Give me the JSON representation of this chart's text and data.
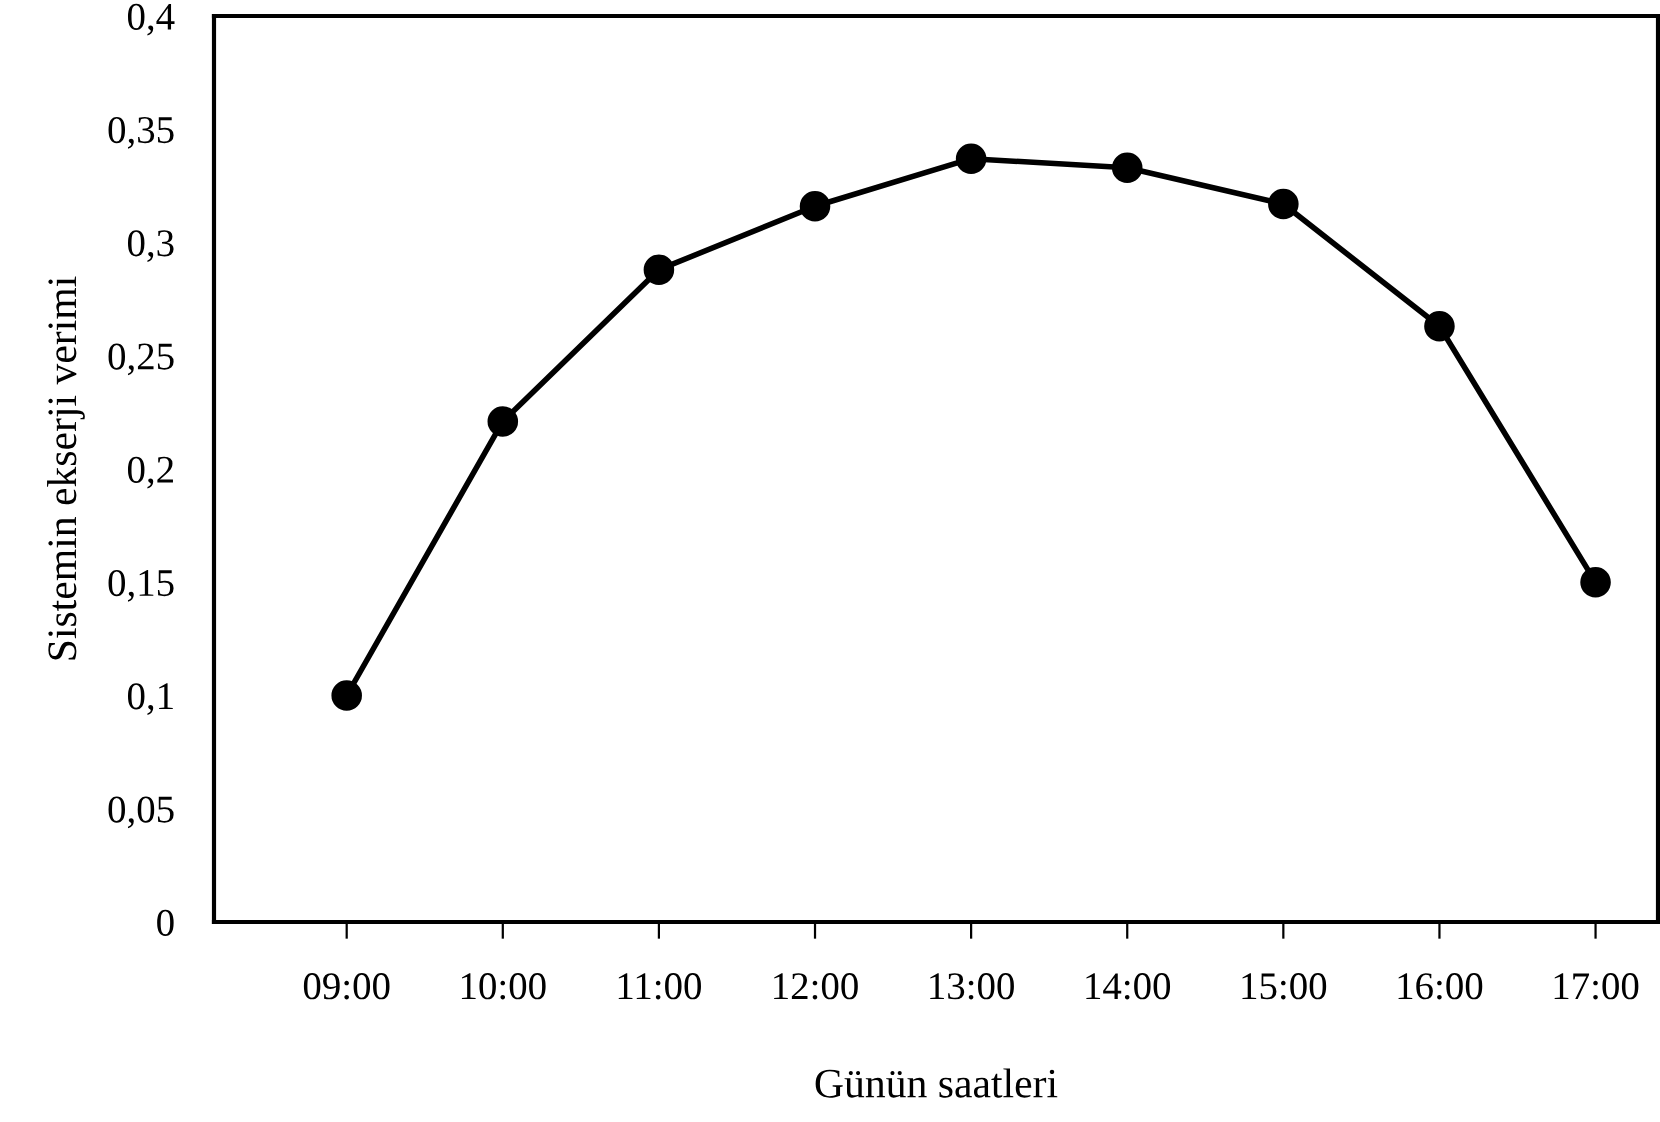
{
  "chart_data": {
    "type": "line",
    "xlabel": "Günün saatleri",
    "ylabel": "Sistemin ekserji verimi",
    "categories": [
      "09:00",
      "10:00",
      "11:00",
      "12:00",
      "13:00",
      "14:00",
      "15:00",
      "16:00",
      "17:00"
    ],
    "series": [
      {
        "color": "#000000",
        "values": [
          0.1,
          0.221,
          0.288,
          0.316,
          0.337,
          0.333,
          0.317,
          0.263,
          0.15
        ]
      }
    ],
    "ylim": [
      0,
      0.4
    ],
    "yticks": [
      {
        "value": 0,
        "label": "0"
      },
      {
        "value": 0.05,
        "label": "0,05"
      },
      {
        "value": 0.1,
        "label": "0,1"
      },
      {
        "value": 0.15,
        "label": "0,15"
      },
      {
        "value": 0.2,
        "label": "0,2"
      },
      {
        "value": 0.25,
        "label": "0,25"
      },
      {
        "value": 0.3,
        "label": "0,3"
      },
      {
        "value": 0.35,
        "label": "0,35"
      },
      {
        "value": 0.4,
        "label": "0,4"
      }
    ],
    "grid": false,
    "marker": "circle",
    "line_style": "solid"
  }
}
